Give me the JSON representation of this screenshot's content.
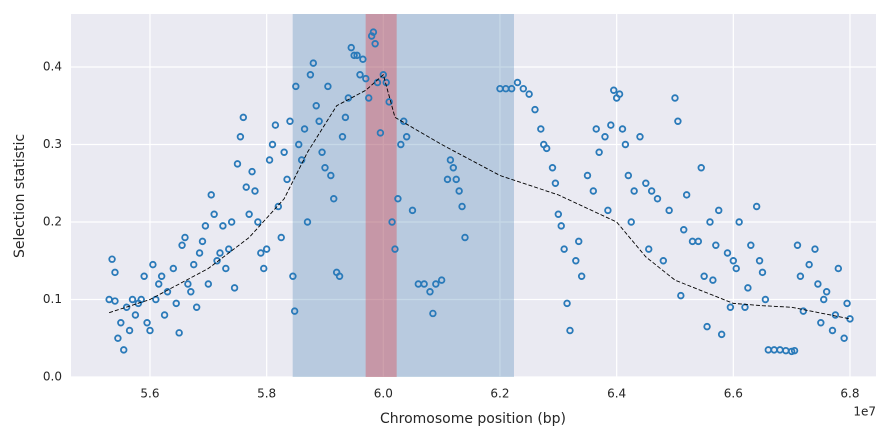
{
  "chart_data": {
    "type": "scatter",
    "xlabel": "Chromosome position (bp)",
    "ylabel": "Selection statistic",
    "x_offset_label": "1e7",
    "xlim": [
      5.4646,
      6.8446
    ],
    "ylim": [
      0,
      0.4684
    ],
    "xticks": [
      5.6,
      5.8,
      {
        "value": 6,
        "label": "6.0"
      },
      6.2,
      6.4,
      6.6,
      6.8
    ],
    "yticks": [
      {
        "value": 0,
        "label": "0.0"
      },
      0.1,
      0.2,
      0.3,
      0.4
    ],
    "grid": true,
    "background": "#eaeaf2",
    "spans": [
      {
        "xmin": 5.8446,
        "xmax": 6.224,
        "color": "#4682b4",
        "alpha": 0.3
      },
      {
        "xmin": 5.9697,
        "xmax": 6.0229,
        "color": "#e0393e",
        "alpha": 0.35
      }
    ],
    "series": [
      {
        "mode": "markers",
        "color": "#2a7ab9",
        "x": [
          5.53,
          5.535,
          5.54,
          5.54,
          5.545,
          5.55,
          5.555,
          5.56,
          5.565,
          5.57,
          5.575,
          5.58,
          5.585,
          5.59,
          5.595,
          5.6,
          5.605,
          5.61,
          5.615,
          5.62,
          5.625,
          5.63,
          5.64,
          5.645,
          5.65,
          5.655,
          5.66,
          5.665,
          5.67,
          5.675,
          5.68,
          5.685,
          5.69,
          5.695,
          5.7,
          5.705,
          5.71,
          5.715,
          5.72,
          5.725,
          5.73,
          5.735,
          5.74,
          5.745,
          5.75,
          5.755,
          5.76,
          5.765,
          5.77,
          5.775,
          5.78,
          5.785,
          5.79,
          5.795,
          5.8,
          5.805,
          5.81,
          5.815,
          5.82,
          5.825,
          5.83,
          5.835,
          5.84,
          5.845,
          5.848,
          5.85,
          5.855,
          5.86,
          5.865,
          5.87,
          5.875,
          5.88,
          5.885,
          5.89,
          5.895,
          5.9,
          5.905,
          5.91,
          5.915,
          5.92,
          5.925,
          5.93,
          5.935,
          5.94,
          5.945,
          5.95,
          5.955,
          5.96,
          5.965,
          5.97,
          5.975,
          5.98,
          5.983,
          5.986,
          5.99,
          5.995,
          6.0,
          6.005,
          6.01,
          6.015,
          6.02,
          6.025,
          6.03,
          6.035,
          6.04,
          6.05,
          6.06,
          6.07,
          6.08,
          6.085,
          6.09,
          6.1,
          6.11,
          6.115,
          6.12,
          6.125,
          6.13,
          6.135,
          6.14,
          6.2,
          6.21,
          6.22,
          6.23,
          6.24,
          6.25,
          6.26,
          6.27,
          6.275,
          6.28,
          6.29,
          6.295,
          6.3,
          6.305,
          6.31,
          6.315,
          6.32,
          6.33,
          6.335,
          6.34,
          6.35,
          6.36,
          6.365,
          6.37,
          6.38,
          6.385,
          6.39,
          6.395,
          6.4,
          6.405,
          6.41,
          6.415,
          6.42,
          6.425,
          6.43,
          6.44,
          6.45,
          6.455,
          6.46,
          6.47,
          6.48,
          6.49,
          6.5,
          6.505,
          6.51,
          6.515,
          6.52,
          6.53,
          6.54,
          6.545,
          6.55,
          6.555,
          6.56,
          6.565,
          6.57,
          6.575,
          6.58,
          6.59,
          6.595,
          6.6,
          6.605,
          6.61,
          6.62,
          6.625,
          6.63,
          6.64,
          6.645,
          6.65,
          6.655,
          6.66,
          6.67,
          6.68,
          6.69,
          6.7,
          6.705,
          6.71,
          6.715,
          6.72,
          6.73,
          6.74,
          6.745,
          6.75,
          6.755,
          6.76,
          6.77,
          6.775,
          6.78,
          6.79,
          6.795,
          6.8
        ],
        "values": [
          0.1,
          0.152,
          0.135,
          0.098,
          0.05,
          0.07,
          0.035,
          0.09,
          0.06,
          0.1,
          0.08,
          0.095,
          0.1,
          0.13,
          0.07,
          0.06,
          0.145,
          0.1,
          0.12,
          0.13,
          0.08,
          0.11,
          0.14,
          0.095,
          0.057,
          0.17,
          0.18,
          0.12,
          0.11,
          0.145,
          0.09,
          0.16,
          0.175,
          0.195,
          0.12,
          0.235,
          0.21,
          0.15,
          0.16,
          0.195,
          0.14,
          0.165,
          0.2,
          0.115,
          0.275,
          0.31,
          0.335,
          0.245,
          0.21,
          0.265,
          0.24,
          0.2,
          0.16,
          0.14,
          0.165,
          0.28,
          0.3,
          0.325,
          0.22,
          0.18,
          0.29,
          0.255,
          0.33,
          0.13,
          0.085,
          0.375,
          0.3,
          0.28,
          0.32,
          0.2,
          0.39,
          0.405,
          0.35,
          0.33,
          0.29,
          0.27,
          0.375,
          0.26,
          0.23,
          0.135,
          0.13,
          0.31,
          0.335,
          0.36,
          0.425,
          0.415,
          0.415,
          0.39,
          0.41,
          0.385,
          0.36,
          0.44,
          0.445,
          0.43,
          0.38,
          0.315,
          0.39,
          0.38,
          0.355,
          0.2,
          0.165,
          0.23,
          0.3,
          0.33,
          0.31,
          0.215,
          0.12,
          0.12,
          0.11,
          0.082,
          0.12,
          0.125,
          0.255,
          0.28,
          0.27,
          0.255,
          0.24,
          0.22,
          0.18,
          0.372,
          0.372,
          0.372,
          0.38,
          0.372,
          0.365,
          0.345,
          0.32,
          0.3,
          0.295,
          0.27,
          0.25,
          0.21,
          0.195,
          0.165,
          0.095,
          0.06,
          0.15,
          0.175,
          0.13,
          0.26,
          0.24,
          0.32,
          0.29,
          0.31,
          0.215,
          0.325,
          0.37,
          0.36,
          0.365,
          0.32,
          0.3,
          0.26,
          0.2,
          0.24,
          0.31,
          0.25,
          0.165,
          0.24,
          0.23,
          0.15,
          0.215,
          0.36,
          0.33,
          0.105,
          0.19,
          0.235,
          0.175,
          0.175,
          0.27,
          0.13,
          0.065,
          0.2,
          0.125,
          0.17,
          0.215,
          0.055,
          0.16,
          0.09,
          0.15,
          0.14,
          0.2,
          0.09,
          0.115,
          0.17,
          0.22,
          0.15,
          0.135,
          0.1,
          0.035,
          0.035,
          0.035,
          0.034,
          0.033,
          0.034,
          0.17,
          0.13,
          0.085,
          0.145,
          0.165,
          0.12,
          0.07,
          0.1,
          0.11,
          0.06,
          0.08,
          0.14,
          0.05,
          0.095,
          0.075
        ]
      },
      {
        "mode": "line",
        "color": "#000000",
        "linestyle": "dashed",
        "x": [
          5.53,
          5.6,
          5.7,
          5.77,
          5.83,
          5.87,
          5.92,
          5.97,
          6.0,
          6.02,
          6.1,
          6.2,
          6.3,
          6.4,
          6.45,
          6.5,
          6.55,
          6.6,
          6.65,
          6.7,
          6.8
        ],
        "values": [
          0.083,
          0.1,
          0.14,
          0.18,
          0.23,
          0.29,
          0.35,
          0.37,
          0.39,
          0.335,
          0.3,
          0.26,
          0.235,
          0.2,
          0.155,
          0.125,
          0.11,
          0.095,
          0.092,
          0.09,
          0.075
        ]
      }
    ]
  }
}
